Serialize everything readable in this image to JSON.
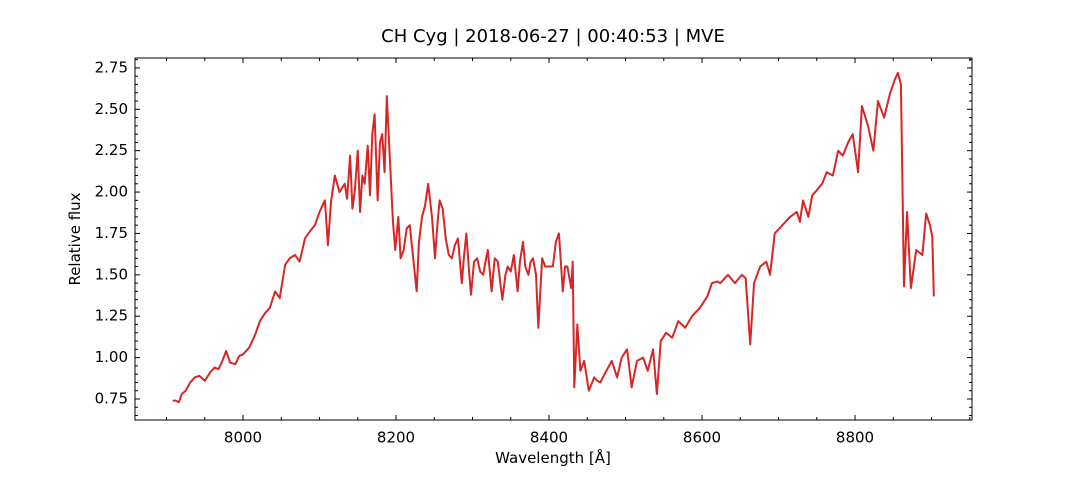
{
  "chart_data": {
    "type": "line",
    "title": "CH Cyg | 2018-06-27 | 00:40:53 | MVE",
    "xlabel": "Wavelength [Å]",
    "ylabel": "Relative flux",
    "x": [
      7908,
      7912,
      7916,
      7920,
      7925,
      7931,
      7937,
      7943,
      7950,
      7957,
      7963,
      7968,
      7973,
      7978,
      7983,
      7990,
      7995,
      8000,
      8008,
      8016,
      8022,
      8029,
      8035,
      8042,
      8048,
      8055,
      8061,
      8068,
      8074,
      8081,
      8087,
      8094,
      8100,
      8107,
      8111,
      8115,
      8120,
      8126,
      8133,
      8136,
      8140,
      8143,
      8146,
      8150,
      8153,
      8156,
      8159,
      8163,
      8166,
      8169,
      8172,
      8176,
      8179,
      8182,
      8185,
      8188,
      8193,
      8196,
      8199,
      8203,
      8206,
      8210,
      8214,
      8218,
      8222,
      8227,
      8230,
      8234,
      8238,
      8242,
      8247,
      8251,
      8254,
      8257,
      8261,
      8265,
      8269,
      8273,
      8277,
      8281,
      8286,
      8289,
      8292,
      8295,
      8298,
      8302,
      8306,
      8310,
      8314,
      8317,
      8320,
      8325,
      8329,
      8333,
      8339,
      8343,
      8346,
      8350,
      8354,
      8359,
      8362,
      8366,
      8369,
      8373,
      8376,
      8379,
      8383,
      8386,
      8391,
      8395,
      8399,
      8405,
      8409,
      8413,
      8418,
      8421,
      8424,
      8429,
      8431,
      8433,
      8437,
      8441,
      8446,
      8452,
      8459,
      8463,
      8467,
      8475,
      8482,
      8489,
      8495,
      8502,
      8508,
      8515,
      8523,
      8529,
      8536,
      8541,
      8546,
      8553,
      8561,
      8569,
      8578,
      8587,
      8597,
      8607,
      8613,
      8620,
      8624,
      8634,
      8643,
      8652,
      8657,
      8663,
      8668,
      8676,
      8684,
      8689,
      8695,
      8705,
      8715,
      8724,
      8728,
      8732,
      8739,
      8744,
      8748,
      8757,
      8763,
      8771,
      8778,
      8784,
      8791,
      8797,
      8804,
      8809,
      8817,
      8824,
      8830,
      8838,
      8846,
      8852,
      8856,
      8860,
      8864,
      8868,
      8873,
      8880,
      8888,
      8893,
      8898,
      8901,
      8903
    ],
    "series": [
      {
        "name": "CH Cyg",
        "color": "#d62728",
        "values": [
          0.74,
          0.74,
          0.73,
          0.78,
          0.8,
          0.85,
          0.88,
          0.89,
          0.86,
          0.91,
          0.94,
          0.93,
          0.98,
          1.04,
          0.97,
          0.96,
          1.01,
          1.02,
          1.06,
          1.14,
          1.22,
          1.27,
          1.3,
          1.4,
          1.36,
          1.56,
          1.6,
          1.62,
          1.58,
          1.72,
          1.76,
          1.8,
          1.88,
          1.95,
          1.68,
          1.94,
          2.1,
          2.0,
          2.05,
          1.96,
          2.22,
          1.9,
          2.0,
          2.25,
          1.88,
          2.1,
          2.05,
          2.28,
          1.98,
          2.35,
          2.47,
          1.95,
          2.3,
          2.35,
          2.12,
          2.58,
          2.1,
          1.82,
          1.65,
          1.85,
          1.6,
          1.65,
          1.78,
          1.8,
          1.62,
          1.4,
          1.7,
          1.85,
          1.92,
          2.05,
          1.85,
          1.6,
          1.8,
          1.95,
          1.9,
          1.72,
          1.62,
          1.6,
          1.68,
          1.72,
          1.45,
          1.62,
          1.75,
          1.55,
          1.38,
          1.58,
          1.6,
          1.52,
          1.5,
          1.58,
          1.65,
          1.4,
          1.6,
          1.58,
          1.35,
          1.5,
          1.55,
          1.52,
          1.62,
          1.4,
          1.58,
          1.7,
          1.55,
          1.5,
          1.58,
          1.6,
          1.5,
          1.18,
          1.6,
          1.55,
          1.55,
          1.55,
          1.7,
          1.75,
          1.4,
          1.55,
          1.55,
          1.42,
          1.58,
          0.82,
          1.2,
          0.92,
          0.98,
          0.8,
          0.88,
          0.86,
          0.85,
          0.92,
          0.98,
          0.88,
          1.0,
          1.05,
          0.82,
          0.98,
          1.0,
          0.92,
          1.05,
          0.78,
          1.1,
          1.15,
          1.12,
          1.22,
          1.18,
          1.25,
          1.3,
          1.37,
          1.45,
          1.46,
          1.45,
          1.5,
          1.45,
          1.5,
          1.48,
          1.08,
          1.45,
          1.55,
          1.58,
          1.5,
          1.75,
          1.8,
          1.85,
          1.88,
          1.82,
          1.95,
          1.85,
          1.98,
          2.0,
          2.05,
          2.12,
          2.1,
          2.25,
          2.22,
          2.3,
          2.35,
          2.12,
          2.52,
          2.4,
          2.25,
          2.55,
          2.45,
          2.6,
          2.68,
          2.72,
          2.65,
          1.43,
          1.88,
          1.42,
          1.65,
          1.62,
          1.87,
          1.8,
          1.73,
          1.37
        ]
      }
    ],
    "xlim": [
      7858.8,
      8952.9
    ],
    "ylim": [
      0.623,
      2.81
    ],
    "xticks": [
      8000,
      8200,
      8400,
      8600,
      8800
    ],
    "yticks": [
      0.75,
      {
        "value": 1,
        "label": "1.00"
      },
      1.25,
      {
        "value": 1.5,
        "label": "1.50"
      },
      1.75,
      {
        "value": 2,
        "label": "2.00"
      },
      2.25,
      {
        "value": 2.5,
        "label": "2.50"
      },
      2.75
    ],
    "xticks_minor": [
      7900,
      7950,
      8050,
      8100,
      8150,
      8250,
      8300,
      8350,
      8450,
      8500,
      8550,
      8650,
      8700,
      8750,
      8850,
      8900,
      8950
    ],
    "yticks_minor": [
      0.65,
      0.7,
      0.8,
      0.85,
      0.9,
      0.95,
      1.05,
      1.1,
      1.15,
      1.2,
      1.3,
      1.35,
      1.4,
      1.45,
      1.55,
      1.6,
      1.65,
      1.7,
      1.8,
      1.85,
      1.9,
      1.95,
      2.05,
      2.1,
      2.15,
      2.2,
      2.3,
      2.35,
      2.4,
      2.45,
      2.55,
      2.6,
      2.65,
      2.7,
      2.8
    ]
  }
}
